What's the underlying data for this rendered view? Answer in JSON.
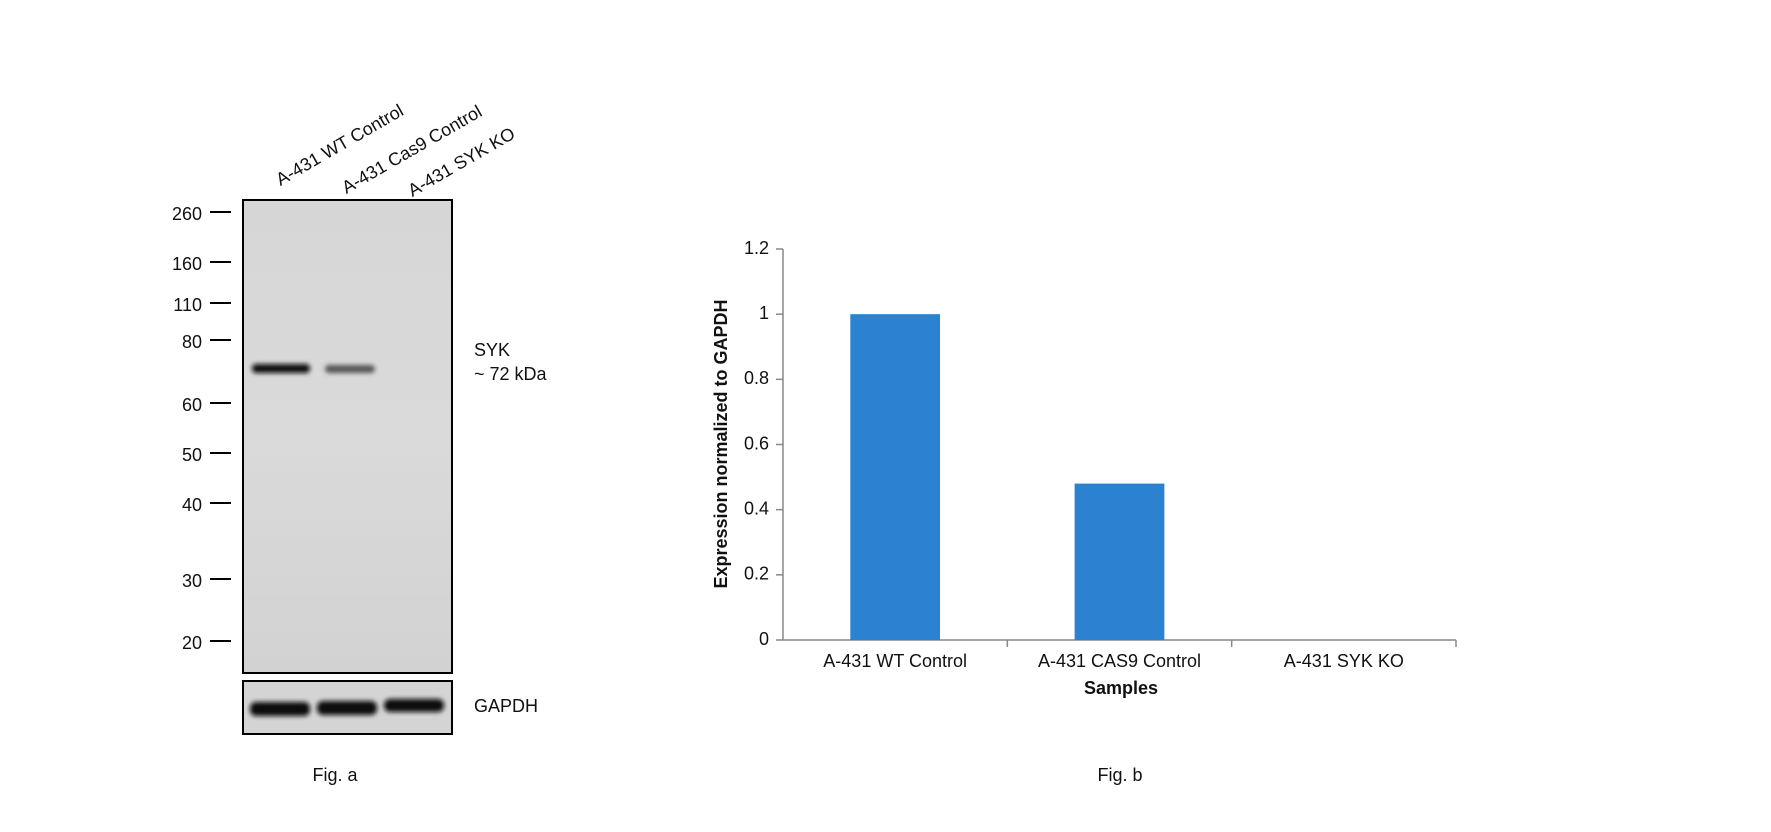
{
  "figure_a": {
    "lanes": [
      "A-431 WT Control",
      "A-431 Cas9 Control",
      "A-431 SYK KO"
    ],
    "markers": [
      "260",
      "160",
      "110",
      "80",
      "60",
      "50",
      "40",
      "30",
      "20"
    ],
    "band_name": "SYK",
    "band_size": "~ 72 kDa",
    "loading_control": "GAPDH",
    "caption": "Fig. a"
  },
  "chart_data": {
    "type": "bar",
    "categories": [
      "A-431 WT Control",
      "A-431 CAS9 Control",
      "A-431 SYK KO"
    ],
    "values": [
      1,
      0.48,
      0
    ],
    "color": "#2a82d0",
    "xlabel": "Samples",
    "ylabel": "Expression normalized to GAPDH",
    "ylim": [
      0,
      1.2
    ],
    "yticks": [
      0,
      0.2,
      0.4,
      0.6,
      0.8,
      1,
      1.2
    ],
    "grid": false,
    "caption": "Fig. b"
  }
}
